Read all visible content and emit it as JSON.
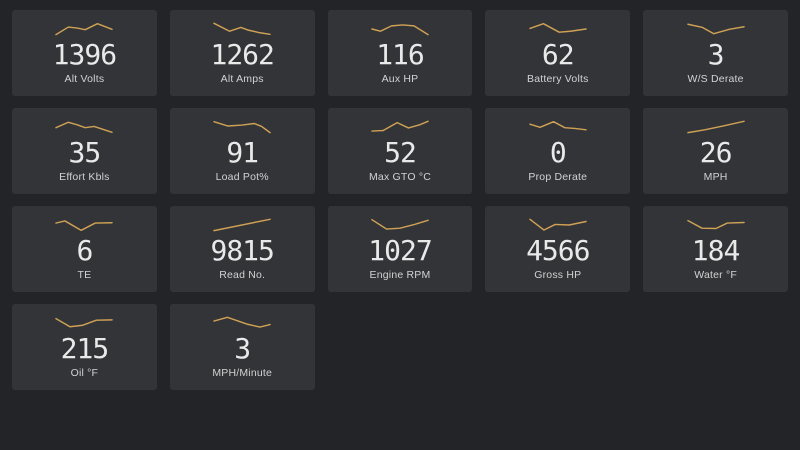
{
  "dashboard": {
    "background_color": "#232427",
    "card_background_color": "#333438",
    "sparkline_color": "#cfa155",
    "value_color": "#e9e9e9",
    "label_color": "#d2d2d2"
  },
  "cards": [
    {
      "value": "1396",
      "label": "Alt Volts",
      "spark": [
        [
          0,
          0.95
        ],
        [
          0.22,
          0.35
        ],
        [
          0.38,
          0.42
        ],
        [
          0.52,
          0.55
        ],
        [
          0.74,
          0.08
        ],
        [
          1,
          0.52
        ]
      ]
    },
    {
      "value": "1262",
      "label": "Alt Amps",
      "spark": [
        [
          0,
          0.05
        ],
        [
          0.28,
          0.68
        ],
        [
          0.48,
          0.38
        ],
        [
          0.62,
          0.6
        ],
        [
          0.82,
          0.8
        ],
        [
          1,
          0.92
        ]
      ]
    },
    {
      "value": "116",
      "label": "Aux HP",
      "spark": [
        [
          0,
          0.5
        ],
        [
          0.15,
          0.68
        ],
        [
          0.35,
          0.25
        ],
        [
          0.55,
          0.18
        ],
        [
          0.75,
          0.25
        ],
        [
          1,
          0.95
        ]
      ]
    },
    {
      "value": "62",
      "label": "Battery Volts",
      "spark": [
        [
          0,
          0.45
        ],
        [
          0.24,
          0.08
        ],
        [
          0.52,
          0.75
        ],
        [
          0.72,
          0.68
        ],
        [
          1,
          0.5
        ]
      ]
    },
    {
      "value": "3",
      "label": "W/S Derate",
      "spark": [
        [
          0,
          0.12
        ],
        [
          0.26,
          0.38
        ],
        [
          0.46,
          0.88
        ],
        [
          0.74,
          0.52
        ],
        [
          1,
          0.32
        ]
      ]
    },
    {
      "value": "35",
      "label": "Effort Kbls",
      "spark": [
        [
          0,
          0.55
        ],
        [
          0.22,
          0.12
        ],
        [
          0.38,
          0.32
        ],
        [
          0.52,
          0.55
        ],
        [
          0.68,
          0.45
        ],
        [
          1,
          0.92
        ]
      ]
    },
    {
      "value": "91",
      "label": "Load Pot%",
      "spark": [
        [
          0,
          0.08
        ],
        [
          0.25,
          0.42
        ],
        [
          0.5,
          0.35
        ],
        [
          0.72,
          0.22
        ],
        [
          0.85,
          0.45
        ],
        [
          1,
          0.95
        ]
      ]
    },
    {
      "value": "52",
      "label": "Max GTO °C",
      "spark": [
        [
          0,
          0.82
        ],
        [
          0.2,
          0.78
        ],
        [
          0.45,
          0.15
        ],
        [
          0.65,
          0.58
        ],
        [
          0.85,
          0.32
        ],
        [
          1,
          0.05
        ]
      ]
    },
    {
      "value": "0",
      "label": "Prop Derate",
      "spark": [
        [
          0,
          0.28
        ],
        [
          0.18,
          0.52
        ],
        [
          0.42,
          0.08
        ],
        [
          0.62,
          0.55
        ],
        [
          0.82,
          0.62
        ],
        [
          1,
          0.72
        ]
      ]
    },
    {
      "value": "26",
      "label": "MPH",
      "spark": [
        [
          0,
          0.95
        ],
        [
          0.3,
          0.72
        ],
        [
          0.62,
          0.42
        ],
        [
          1,
          0.05
        ]
      ]
    },
    {
      "value": "6",
      "label": "TE",
      "spark": [
        [
          0,
          0.35
        ],
        [
          0.16,
          0.18
        ],
        [
          0.45,
          0.92
        ],
        [
          0.7,
          0.35
        ],
        [
          1,
          0.32
        ]
      ]
    },
    {
      "value": "9815",
      "label": "Read No.",
      "spark": [
        [
          0,
          0.95
        ],
        [
          1,
          0.05
        ]
      ]
    },
    {
      "value": "1027",
      "label": "Engine RPM",
      "spark": [
        [
          0,
          0.08
        ],
        [
          0.26,
          0.82
        ],
        [
          0.5,
          0.75
        ],
        [
          0.76,
          0.45
        ],
        [
          1,
          0.12
        ]
      ]
    },
    {
      "value": "4566",
      "label": "Gross HP",
      "spark": [
        [
          0,
          0.05
        ],
        [
          0.25,
          0.9
        ],
        [
          0.45,
          0.45
        ],
        [
          0.7,
          0.5
        ],
        [
          1,
          0.22
        ]
      ]
    },
    {
      "value": "184",
      "label": "Water °F",
      "spark": [
        [
          0,
          0.15
        ],
        [
          0.25,
          0.75
        ],
        [
          0.5,
          0.78
        ],
        [
          0.7,
          0.35
        ],
        [
          1,
          0.3
        ]
      ]
    },
    {
      "value": "215",
      "label": "Oil °F",
      "spark": [
        [
          0,
          0.15
        ],
        [
          0.25,
          0.8
        ],
        [
          0.48,
          0.68
        ],
        [
          0.72,
          0.28
        ],
        [
          1,
          0.25
        ]
      ]
    },
    {
      "value": "3",
      "label": "MPH/Minute",
      "spark": [
        [
          0,
          0.35
        ],
        [
          0.24,
          0.05
        ],
        [
          0.6,
          0.6
        ],
        [
          0.82,
          0.82
        ],
        [
          1,
          0.62
        ]
      ]
    }
  ]
}
